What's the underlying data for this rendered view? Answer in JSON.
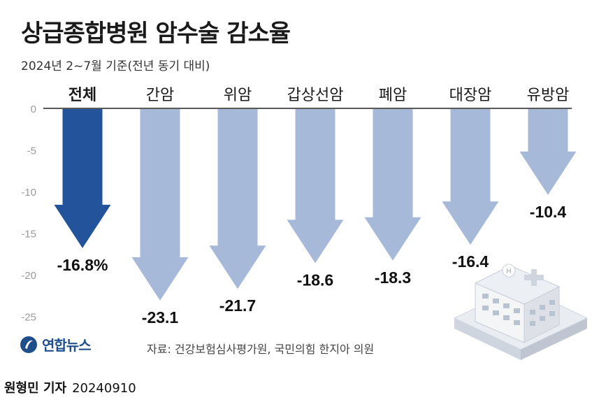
{
  "header": {
    "title": "상급종합병원 암수술 감소율",
    "subtitle": "2024년 2~7월 기준(전년 동기 대비)"
  },
  "chart_data": {
    "type": "bar",
    "orientation": "downward-arrows",
    "categories": [
      "전체",
      "간암",
      "위암",
      "갑상선암",
      "폐암",
      "대장암",
      "유방암"
    ],
    "values": [
      -16.8,
      -23.1,
      -21.7,
      -18.6,
      -18.3,
      -16.4,
      -10.4
    ],
    "value_labels": [
      "-16.8%",
      "-23.1",
      "-21.7",
      "-18.6",
      "-18.3",
      "-16.4",
      "-10.4"
    ],
    "highlight_index": 0,
    "ylim": [
      -25,
      0
    ],
    "yticks": [
      0,
      -5,
      -10,
      -15,
      -20,
      -25
    ],
    "ytick_labels": [
      "0",
      "-5",
      "-10",
      "-15",
      "-20",
      "-25"
    ],
    "grid": false,
    "colors": {
      "highlight": "#23539a",
      "normal": "#a7b9d9",
      "axis": "#222222",
      "tick": "#9a9a9a"
    }
  },
  "footer": {
    "logo_text": "연합뉴스",
    "source": "자료: 건강보험심사평가원, 국민의힘 한지아 의원",
    "byline_name": "원형민 기자",
    "byline_date": "20240910"
  },
  "decor": {
    "illustration": "hospital-building-icon"
  }
}
